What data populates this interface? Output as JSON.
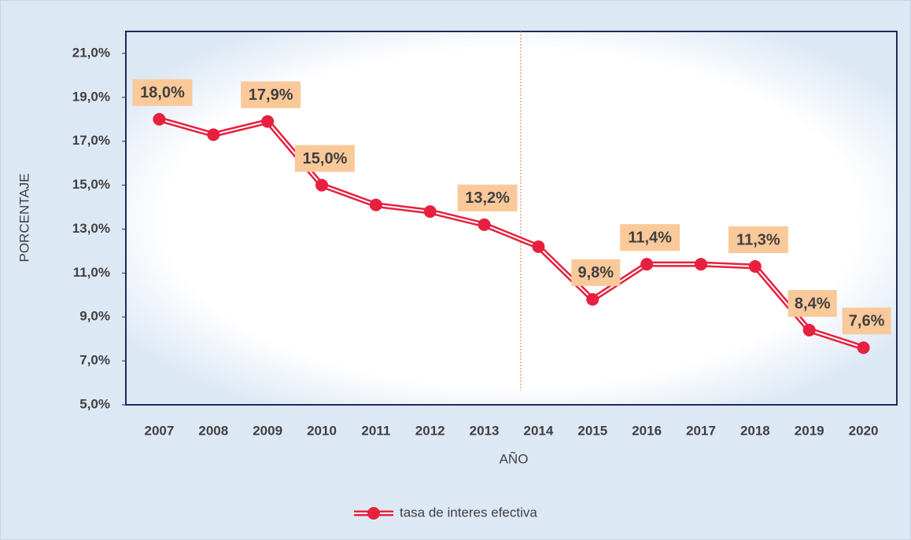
{
  "chart_data": {
    "type": "line",
    "x_label": "AÑO",
    "y_label": "PORCENTAJE",
    "categories": [
      "2007",
      "2008",
      "2009",
      "2010",
      "2011",
      "2012",
      "2013",
      "2014",
      "2015",
      "2016",
      "2017",
      "2018",
      "2019",
      "2020"
    ],
    "series": [
      {
        "name": "tasa de interes efectiva",
        "color": "#e8203f",
        "values": [
          18.0,
          17.3,
          17.9,
          15.0,
          14.1,
          13.8,
          13.2,
          12.2,
          9.8,
          11.4,
          11.4,
          11.3,
          8.4,
          7.6
        ],
        "value_labels": [
          "18,0%",
          null,
          "17,9%",
          "15,0%",
          null,
          null,
          "13,2%",
          null,
          "9,8%",
          "11,4%",
          null,
          "11,3%",
          "8,4%",
          "7,6%"
        ]
      }
    ],
    "ylim": [
      5,
      22
    ],
    "yticks": [
      {
        "value": 5,
        "label": "5,0%"
      },
      {
        "value": 7,
        "label": "7,0%"
      },
      {
        "value": 9,
        "label": "9,0%"
      },
      {
        "value": 11,
        "label": "11,0%"
      },
      {
        "value": 13,
        "label": "13,0%"
      },
      {
        "value": 15,
        "label": "15,0%"
      },
      {
        "value": 17,
        "label": "17,0%"
      },
      {
        "value": 19,
        "label": "19,0%"
      },
      {
        "value": 21,
        "label": "21,0%"
      }
    ],
    "legend": "bottom"
  }
}
